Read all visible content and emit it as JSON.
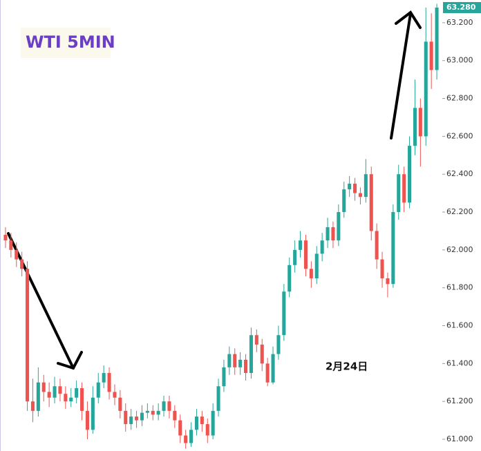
{
  "chart_data": {
    "type": "candlestick",
    "title": "WTI 5MIN",
    "annotation": "2月24日",
    "up_color": "#26a69a",
    "down_color": "#ef5350",
    "ylim": [
      60.938,
      63.32
    ],
    "yticks": [
      {
        "value": 61,
        "label": "61.000"
      },
      {
        "value": 61.2,
        "label": "61.200"
      },
      {
        "value": 61.4,
        "label": "61.400"
      },
      {
        "value": 61.6,
        "label": "61.600"
      },
      {
        "value": 61.8,
        "label": "61.800"
      },
      {
        "value": 62,
        "label": "62.000"
      },
      {
        "value": 62.2,
        "label": "62.200"
      },
      {
        "value": 62.4,
        "label": "62.400"
      },
      {
        "value": 62.6,
        "label": "62.600"
      },
      {
        "value": 62.8,
        "label": "62.800"
      },
      {
        "value": 63,
        "label": "63.000"
      },
      {
        "value": 63.2,
        "label": "63.200"
      }
    ],
    "last_price": {
      "value": 63.28,
      "value_label": "63.280"
    },
    "open": [
      62.08,
      62.05,
      62.0,
      61.95,
      61.9,
      61.2,
      61.15,
      61.3,
      61.25,
      61.22,
      61.28,
      61.24,
      61.2,
      61.22,
      61.27,
      61.15,
      61.05,
      61.22,
      61.3,
      61.35,
      61.25,
      61.22,
      61.15,
      61.08,
      61.12,
      61.1,
      61.14,
      61.15,
      61.13,
      61.15,
      61.2,
      61.15,
      61.1,
      61.02,
      60.98,
      61.05,
      61.12,
      61.08,
      61.02,
      61.15,
      61.28,
      61.38,
      61.45,
      61.38,
      61.42,
      61.35,
      61.55,
      61.5,
      61.4,
      61.3,
      61.45,
      61.55,
      61.78,
      61.92,
      62.0,
      62.05,
      61.9,
      61.85,
      61.98,
      62.05,
      62.12,
      62.05,
      62.2,
      62.32,
      62.35,
      62.3,
      62.28,
      62.4,
      62.1,
      61.95,
      61.85,
      61.82,
      62.2,
      62.4,
      62.25,
      62.55,
      62.75,
      62.6,
      63.1,
      62.95
    ],
    "high": [
      62.12,
      62.09,
      62.04,
      61.99,
      61.94,
      61.32,
      61.38,
      61.34,
      61.3,
      61.33,
      61.32,
      61.28,
      61.27,
      61.31,
      61.3,
      61.2,
      61.28,
      61.35,
      61.39,
      61.38,
      61.29,
      61.26,
      61.19,
      61.16,
      61.15,
      61.18,
      61.19,
      61.18,
      61.19,
      61.23,
      61.23,
      61.18,
      61.13,
      61.05,
      61.09,
      61.16,
      61.15,
      61.11,
      61.19,
      61.32,
      61.42,
      61.49,
      61.48,
      61.46,
      61.45,
      61.59,
      61.58,
      61.53,
      61.43,
      61.49,
      61.6,
      61.82,
      61.96,
      62.05,
      62.1,
      62.08,
      61.94,
      62.02,
      62.09,
      62.17,
      62.15,
      62.24,
      62.36,
      62.39,
      62.38,
      62.33,
      62.48,
      62.44,
      62.14,
      61.99,
      61.88,
      62.24,
      62.45,
      62.44,
      62.6,
      62.9,
      62.8,
      63.28,
      63.25,
      63.3
    ],
    "low": [
      62.01,
      61.96,
      61.91,
      61.86,
      61.15,
      61.09,
      61.12,
      61.2,
      61.17,
      61.19,
      61.2,
      61.16,
      61.17,
      61.19,
      61.1,
      61.0,
      61.03,
      61.19,
      61.27,
      61.21,
      61.18,
      61.11,
      61.04,
      61.05,
      61.06,
      61.07,
      61.11,
      61.1,
      61.1,
      61.12,
      61.11,
      61.06,
      60.98,
      60.95,
      60.96,
      61.02,
      61.04,
      60.98,
      61.0,
      61.12,
      61.25,
      61.34,
      61.34,
      61.34,
      61.31,
      61.32,
      61.46,
      61.36,
      61.28,
      61.29,
      61.42,
      61.52,
      61.75,
      61.88,
      61.96,
      61.86,
      61.8,
      61.82,
      61.94,
      62.01,
      62.01,
      62.02,
      62.17,
      62.28,
      62.26,
      62.24,
      62.25,
      62.05,
      61.9,
      61.8,
      61.75,
      61.8,
      62.16,
      62.2,
      62.22,
      62.5,
      62.44,
      62.55,
      62.85,
      62.9
    ],
    "close": [
      62.05,
      62.0,
      61.95,
      61.9,
      61.2,
      61.15,
      61.3,
      61.25,
      61.22,
      61.28,
      61.24,
      61.2,
      61.22,
      61.27,
      61.15,
      61.05,
      61.22,
      61.3,
      61.35,
      61.25,
      61.22,
      61.15,
      61.08,
      61.12,
      61.1,
      61.14,
      61.15,
      61.13,
      61.15,
      61.2,
      61.15,
      61.1,
      61.02,
      60.98,
      61.05,
      61.12,
      61.08,
      61.02,
      61.15,
      61.28,
      61.38,
      61.45,
      61.38,
      61.42,
      61.35,
      61.55,
      61.5,
      61.4,
      61.3,
      61.45,
      61.55,
      61.78,
      61.92,
      62.0,
      62.05,
      61.9,
      61.85,
      61.98,
      62.05,
      62.12,
      62.05,
      62.2,
      62.32,
      62.35,
      62.3,
      62.28,
      62.4,
      62.1,
      61.95,
      61.85,
      61.82,
      62.2,
      62.4,
      62.25,
      62.55,
      62.75,
      62.6,
      63.1,
      62.95,
      63.28
    ]
  }
}
